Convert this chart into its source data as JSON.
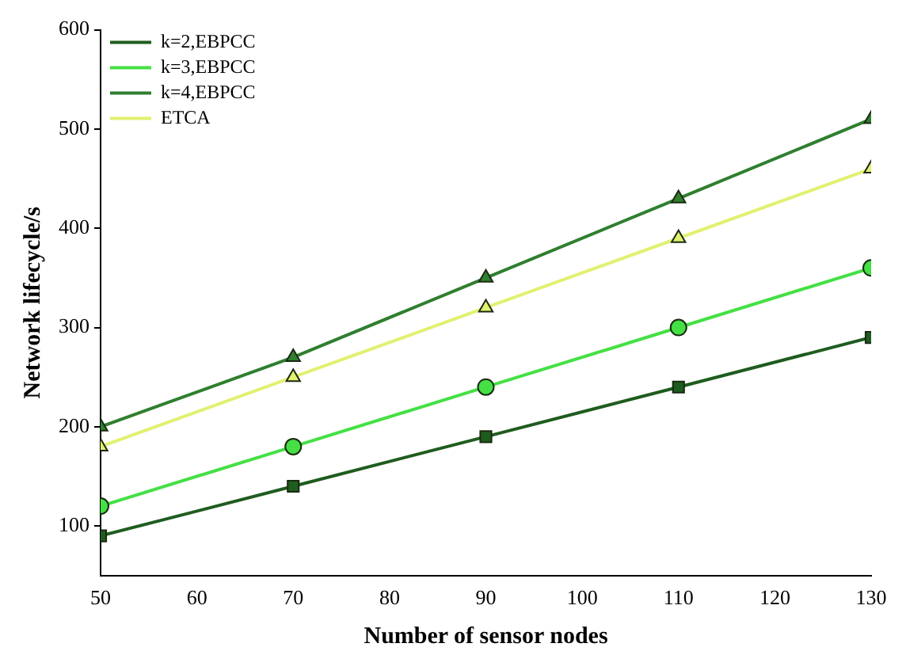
{
  "chart_data": {
    "type": "line",
    "xlabel": "Number of sensor nodes",
    "ylabel": "Network lifecycle/s",
    "x": [
      50,
      70,
      90,
      110,
      130
    ],
    "series": [
      {
        "name": "k=2,EBPCC",
        "color": "#1f5c1f",
        "marker": "square",
        "values": [
          90,
          140,
          190,
          240,
          290
        ]
      },
      {
        "name": "k=3,EBPCC",
        "color": "#44e044",
        "marker": "circle",
        "values": [
          120,
          180,
          240,
          300,
          360
        ]
      },
      {
        "name": "k=4,EBPCC",
        "color": "#2f7f2f",
        "marker": "triangle",
        "values": [
          200,
          270,
          350,
          430,
          510
        ]
      },
      {
        "name": "ETCA",
        "color": "#e2f070",
        "marker": "triangle",
        "values": [
          180,
          250,
          320,
          390,
          460
        ]
      }
    ],
    "xlim": [
      50,
      130
    ],
    "xticks": [
      50,
      60,
      70,
      80,
      90,
      100,
      110,
      120,
      130
    ],
    "ylim": [
      50,
      600
    ],
    "yticks": [
      100,
      200,
      300,
      400,
      500,
      600
    ],
    "grid": false,
    "legend": "top left",
    "line_style": "solid"
  }
}
